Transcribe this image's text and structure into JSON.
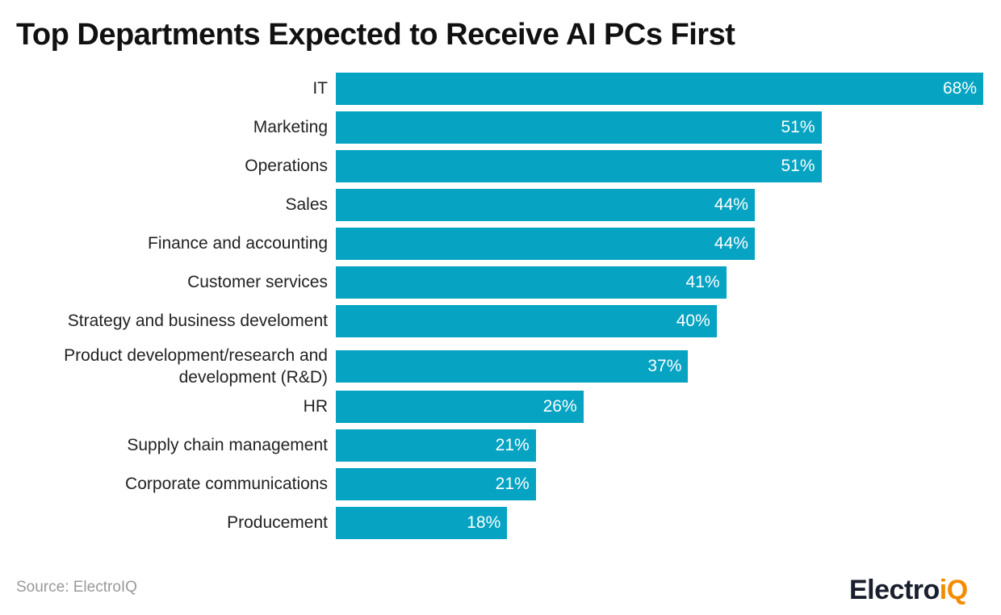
{
  "chart_data": {
    "type": "bar",
    "orientation": "horizontal",
    "title": "Top Departments Expected to Receive AI PCs First",
    "categories": [
      "IT",
      "Marketing",
      "Operations",
      "Sales",
      "Finance and accounting",
      "Customer services",
      "Strategy and business develoment",
      "Product development/research and development (R&D)",
      "HR",
      "Supply chain management",
      "Corporate communications",
      "Producement"
    ],
    "values": [
      68,
      51,
      51,
      44,
      44,
      41,
      40,
      37,
      26,
      21,
      21,
      18
    ],
    "unit": "%",
    "bar_color": "#06A3C2",
    "grid": false
  },
  "source": "Source: ElectroIQ",
  "logo": {
    "text_main": "Electro",
    "text_accent": "iQ",
    "accent_color": "#F28C00"
  }
}
